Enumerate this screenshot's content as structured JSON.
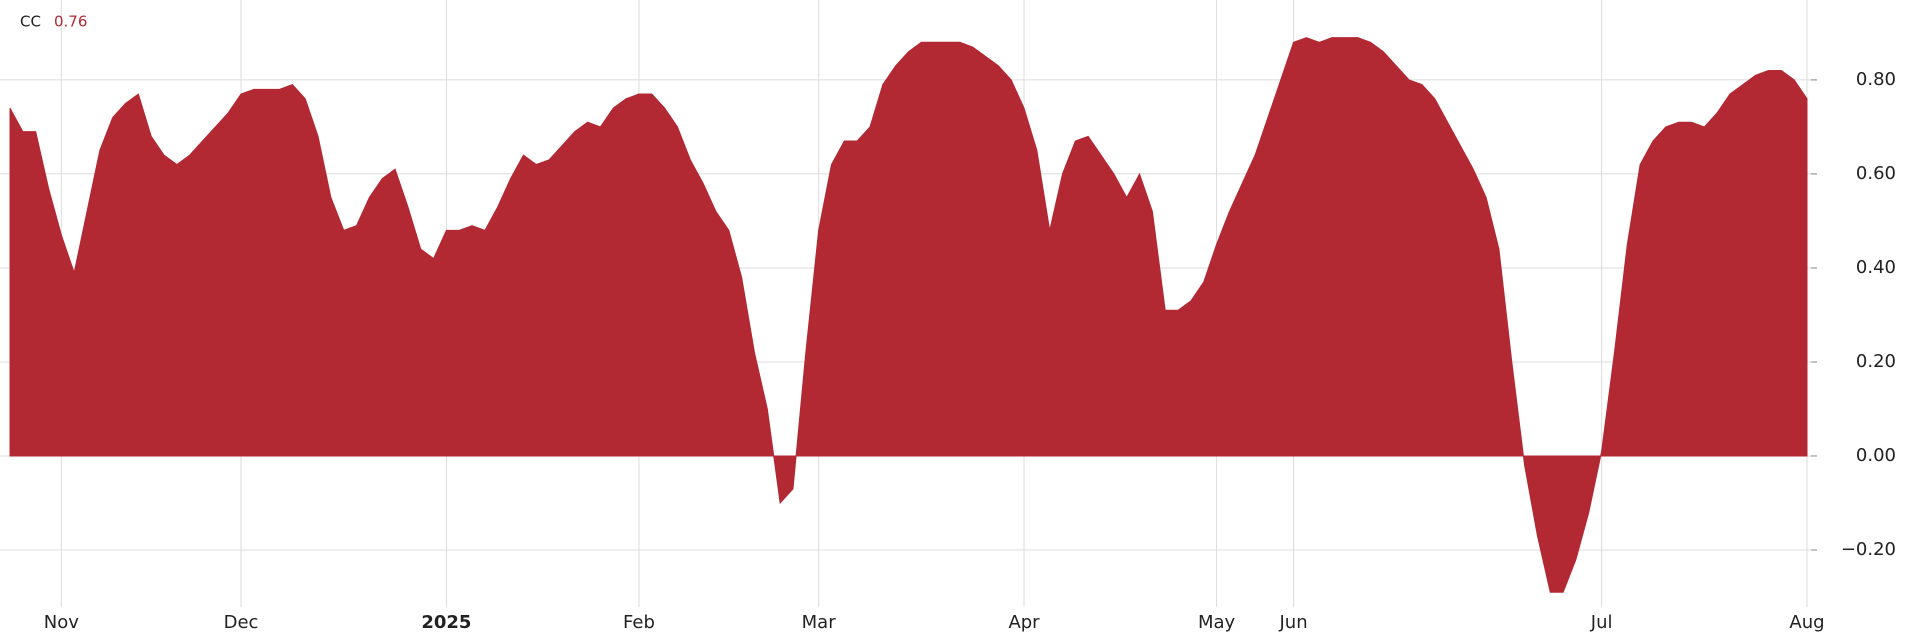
{
  "chart_data": {
    "type": "area",
    "series": [
      {
        "name": "CC",
        "color": "#b22833",
        "values": [
          0.74,
          0.69,
          0.69,
          0.57,
          0.47,
          0.39,
          0.52,
          0.65,
          0.72,
          0.75,
          0.77,
          0.68,
          0.64,
          0.62,
          0.64,
          0.67,
          0.7,
          0.73,
          0.77,
          0.78,
          0.78,
          0.78,
          0.79,
          0.76,
          0.68,
          0.55,
          0.48,
          0.49,
          0.55,
          0.59,
          0.61,
          0.53,
          0.44,
          0.42,
          0.48,
          0.48,
          0.49,
          0.48,
          0.53,
          0.59,
          0.64,
          0.62,
          0.63,
          0.66,
          0.69,
          0.71,
          0.7,
          0.74,
          0.76,
          0.77,
          0.77,
          0.74,
          0.7,
          0.63,
          0.58,
          0.52,
          0.48,
          0.38,
          0.22,
          0.1,
          -0.1,
          -0.07,
          0.22,
          0.48,
          0.62,
          0.67,
          0.67,
          0.7,
          0.79,
          0.83,
          0.86,
          0.88,
          0.88,
          0.88,
          0.88,
          0.87,
          0.85,
          0.83,
          0.8,
          0.74,
          0.65,
          0.48,
          0.6,
          0.67,
          0.68,
          0.64,
          0.6,
          0.55,
          0.6,
          0.52,
          0.31,
          0.31,
          0.33,
          0.37,
          0.45,
          0.52,
          0.58,
          0.64,
          0.72,
          0.8,
          0.88,
          0.89,
          0.88,
          0.89,
          0.89,
          0.89,
          0.88,
          0.86,
          0.83,
          0.8,
          0.79,
          0.76,
          0.71,
          0.66,
          0.61,
          0.55,
          0.44,
          0.2,
          -0.02,
          -0.17,
          -0.29,
          -0.29,
          -0.22,
          -0.12,
          0.01,
          0.22,
          0.45,
          0.62,
          0.67,
          0.7,
          0.71,
          0.71,
          0.7,
          0.73,
          0.77,
          0.79,
          0.81,
          0.82,
          0.82,
          0.8,
          0.76
        ]
      }
    ],
    "categories": [
      null,
      null,
      null,
      null,
      "Nov",
      null,
      null,
      null,
      null,
      null,
      null,
      null,
      null,
      null,
      null,
      null,
      null,
      null,
      "Dec",
      null,
      null,
      null,
      null,
      null,
      null,
      null,
      null,
      null,
      null,
      null,
      null,
      null,
      null,
      null,
      "2025",
      null,
      null,
      null,
      null,
      null,
      null,
      null,
      null,
      null,
      null,
      null,
      null,
      null,
      null,
      "Feb",
      null,
      null,
      null,
      null,
      null,
      null,
      null,
      null,
      null,
      null,
      null,
      null,
      null,
      "Mar",
      null,
      null,
      null,
      null,
      null,
      null,
      null,
      null,
      null,
      null,
      null,
      null,
      null,
      null,
      null,
      "Apr",
      null,
      null,
      null,
      null,
      null,
      null,
      null,
      null,
      null,
      null,
      null,
      null,
      null,
      null,
      "May",
      null,
      null,
      null,
      null,
      null,
      "Jun",
      null,
      null,
      null,
      null,
      null,
      null,
      null,
      null,
      null,
      null,
      null,
      null,
      null,
      null,
      null,
      null,
      null,
      null,
      null,
      null,
      null,
      null,
      null,
      "Jul",
      null,
      null,
      null,
      null,
      null,
      null,
      null,
      null,
      null,
      null,
      null,
      null,
      null,
      null,
      null,
      "Aug"
    ],
    "ylim": [
      -0.3,
      0.97
    ],
    "yticks": [
      {
        "value": -0.2,
        "label": "−0.20"
      },
      {
        "value": 0,
        "label": "0.00"
      },
      {
        "value": 0.2,
        "label": "0.20"
      },
      {
        "value": 0.4,
        "label": "0.40"
      },
      {
        "value": 0.6,
        "label": "0.60"
      },
      {
        "value": 0.8,
        "label": "0.80"
      }
    ],
    "grid": true
  }
}
